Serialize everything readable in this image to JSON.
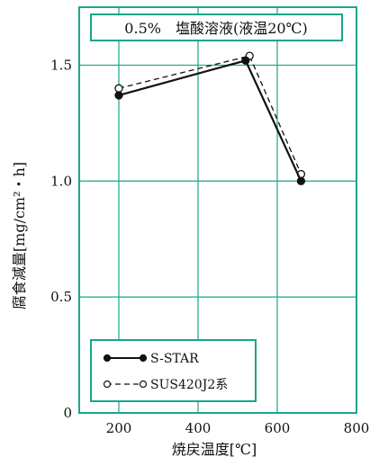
{
  "chart_data": {
    "type": "line",
    "title": "0.5%　塩酸溶液(液温20℃)",
    "xlabel": "焼戻温度[℃]",
    "ylabel": "腐食減量[mg/cm²・h]",
    "xlim": [
      100,
      800
    ],
    "ylim": [
      0,
      1.75
    ],
    "x_ticks": [
      200,
      400,
      600,
      800
    ],
    "y_ticks": [
      0,
      0.5,
      1.0,
      1.5
    ],
    "x_tick_labels": [
      "200",
      "400",
      "600",
      "800"
    ],
    "y_tick_labels": [
      "0",
      "0.5",
      "1.0",
      "1.5"
    ],
    "grid": true,
    "legend_position": "bottom-left",
    "series": [
      {
        "name": "S-STAR",
        "style": "solid",
        "marker": "filled-circle",
        "x": [
          200,
          520,
          660
        ],
        "y": [
          1.37,
          1.52,
          1.0
        ]
      },
      {
        "name": "SUS420J2系",
        "style": "dashed",
        "marker": "open-circle",
        "x": [
          200,
          530,
          660
        ],
        "y": [
          1.4,
          1.54,
          1.03
        ]
      }
    ],
    "colors": {
      "frame": "#1aa58c",
      "line": "#111111"
    }
  }
}
